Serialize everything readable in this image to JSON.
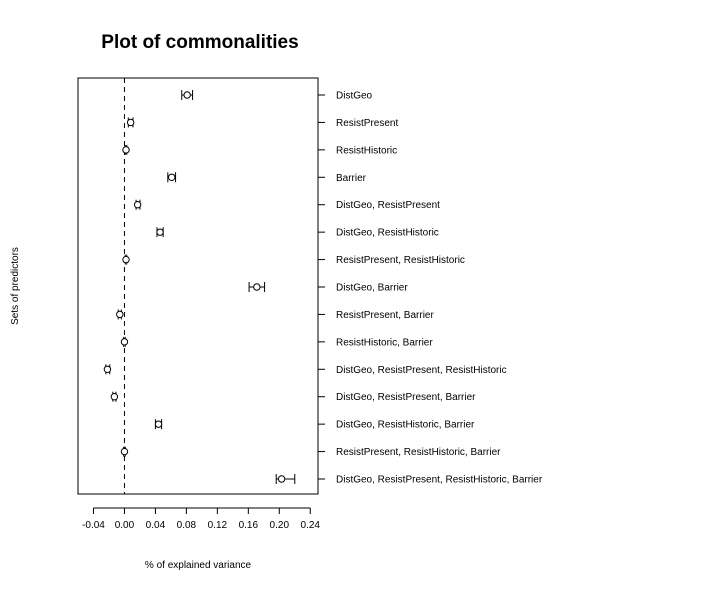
{
  "chart_data": {
    "type": "scatter",
    "title": "Plot of commonalities",
    "xlabel": "% of explained variance",
    "ylabel": "Sets of predictors",
    "xlim": [
      -0.06,
      0.25
    ],
    "xticks": [
      -0.04,
      0.0,
      0.04,
      0.08,
      0.12,
      0.16,
      0.2,
      0.24
    ],
    "xtick_labels": [
      "-0.04",
      "0.00",
      "0.04",
      "0.08",
      "0.12",
      "0.16",
      "0.20",
      "0.24"
    ],
    "reference_line_x": 0.0,
    "grid": false,
    "categories": [
      "DistGeo",
      "ResistPresent",
      "ResistHistoric",
      "Barrier",
      "DistGeo, ResistPresent",
      "DistGeo, ResistHistoric",
      "ResistPresent, ResistHistoric",
      "DistGeo, Barrier",
      "ResistPresent, Barrier",
      "ResistHistoric, Barrier",
      "DistGeo, ResistPresent, ResistHistoric",
      "DistGeo, ResistPresent, Barrier",
      "DistGeo, ResistHistoric, Barrier",
      "ResistPresent, ResistHistoric, Barrier",
      "DistGeo, ResistPresent, ResistHistoric, Barrier"
    ],
    "estimates": [
      0.081,
      0.008,
      0.002,
      0.061,
      0.017,
      0.046,
      0.002,
      0.171,
      -0.006,
      0.0,
      -0.022,
      -0.013,
      0.044,
      0.0,
      0.203
    ],
    "lower": [
      0.074,
      0.005,
      0.001,
      0.056,
      0.015,
      0.042,
      0.001,
      0.161,
      -0.008,
      -0.001,
      -0.024,
      -0.015,
      0.04,
      -0.001,
      0.196
    ],
    "upper": [
      0.088,
      0.011,
      0.003,
      0.066,
      0.02,
      0.05,
      0.003,
      0.181,
      -0.004,
      0.001,
      -0.019,
      -0.011,
      0.048,
      0.001,
      0.22
    ]
  }
}
